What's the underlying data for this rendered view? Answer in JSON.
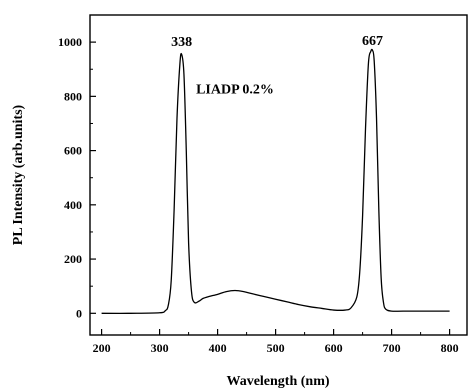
{
  "chart_data": {
    "type": "line",
    "xlabel": "Wavelength (nm)",
    "ylabel": "PL Intensity (arb.units)",
    "xlim": [
      180,
      830
    ],
    "ylim": [
      -80,
      1100
    ],
    "x_ticks": [
      200,
      300,
      400,
      500,
      600,
      700,
      800
    ],
    "y_ticks": [
      0,
      200,
      400,
      600,
      800,
      1000
    ],
    "grid": false,
    "legend": "none",
    "annotations": [
      {
        "text": "338",
        "x": 338,
        "y": 985
      },
      {
        "text": "667",
        "x": 667,
        "y": 990
      },
      {
        "text": "LIADP 0.2%",
        "x": 430,
        "y": 810
      }
    ],
    "series": [
      {
        "color": "#000000",
        "x": [
          200,
          250,
          300,
          310,
          315,
          320,
          325,
          330,
          335,
          338,
          342,
          346,
          350,
          355,
          360,
          368,
          375,
          385,
          400,
          415,
          430,
          445,
          460,
          480,
          500,
          520,
          540,
          560,
          580,
          600,
          620,
          630,
          640,
          645,
          650,
          655,
          660,
          664,
          667,
          670,
          674,
          678,
          682,
          686,
          690,
          700,
          720,
          760,
          800
        ],
        "y": [
          0,
          0,
          2,
          10,
          30,
          120,
          380,
          720,
          920,
          955,
          880,
          600,
          260,
          80,
          40,
          45,
          55,
          62,
          70,
          80,
          84,
          80,
          72,
          62,
          52,
          42,
          32,
          24,
          18,
          12,
          12,
          20,
          60,
          150,
          360,
          680,
          920,
          965,
          970,
          930,
          720,
          380,
          130,
          40,
          15,
          8,
          8,
          8,
          8
        ]
      }
    ]
  }
}
